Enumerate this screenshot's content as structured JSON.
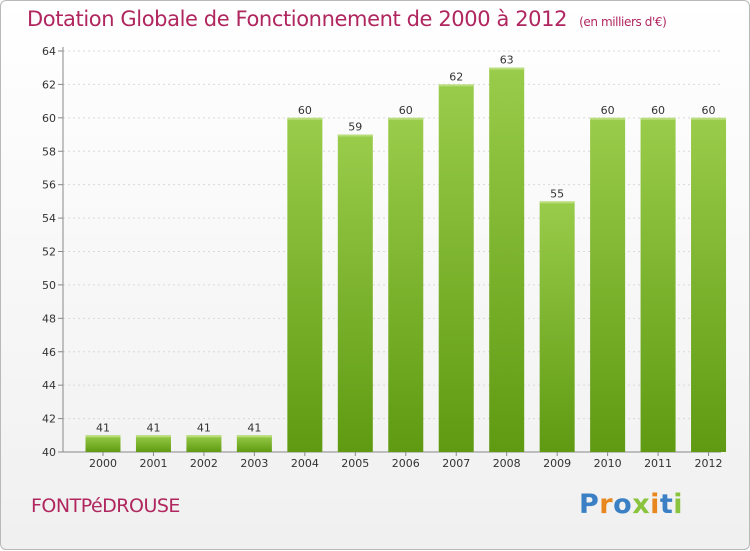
{
  "title": "Dotation Globale de Fonctionnement de 2000 à 2012",
  "unit_note": "(en milliers d'€)",
  "commune": "FONTPéDROUSE",
  "logo": {
    "text": "Proxiti",
    "letter_colors": [
      "#3b7fc4",
      "#e8871e",
      "#3b7fc4",
      "#8ac43e",
      "#e8871e",
      "#3b7fc4",
      "#8ac43e"
    ]
  },
  "colors": {
    "bar_top": "#99cc4a",
    "bar_bottom": "#5f9a12",
    "title": "#b0265e"
  },
  "chart_data": {
    "type": "bar",
    "title": "Dotation Globale de Fonctionnement de 2000 à 2012",
    "categories": [
      "2000",
      "2001",
      "2002",
      "2003",
      "2004",
      "2005",
      "2006",
      "2007",
      "2008",
      "2009",
      "2010",
      "2011",
      "2012"
    ],
    "values": [
      41,
      41,
      41,
      41,
      60,
      59,
      60,
      62,
      63,
      55,
      60,
      60,
      60
    ],
    "ylim": [
      40,
      64
    ],
    "yticks": [
      40,
      42,
      44,
      46,
      48,
      50,
      52,
      54,
      56,
      58,
      60,
      62,
      64
    ],
    "grid": true,
    "xlabel": "",
    "ylabel": ""
  }
}
